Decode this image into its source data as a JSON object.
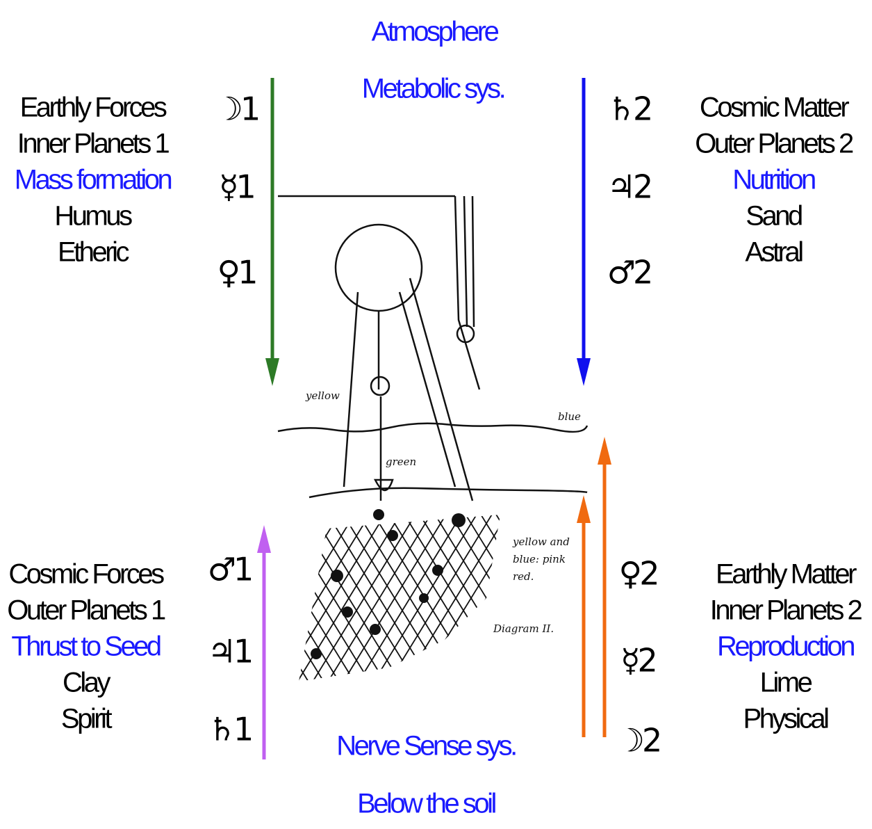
{
  "header": {
    "title": "Atmosphere",
    "subtitle": "Metabolic sys."
  },
  "quadrants": [
    {
      "lines": [
        "Earthly Forces",
        "Inner Planets 1",
        "Mass formation",
        "Humus",
        "Etheric"
      ],
      "symbols": [
        "☽1",
        "☿1",
        "♀1"
      ]
    },
    {
      "lines": [
        "Cosmic  Matter",
        "Outer Planets 2",
        "Nutrition",
        "Sand",
        "Astral"
      ],
      "symbols": [
        "♄2",
        "♃2",
        "♂2"
      ]
    },
    {
      "lines": [
        "Cosmic  Forces",
        "Outer Planets 1",
        "Thrust to Seed",
        "Clay",
        "Spirit"
      ],
      "symbols": [
        "♂1",
        "♃1",
        "♄1"
      ]
    },
    {
      "lines": [
        "Earthly Matter",
        "Inner Planets 2",
        "Reproduction",
        "Lime",
        "Physical"
      ],
      "symbols": [
        "♀2",
        "☿2",
        "☽2"
      ]
    }
  ],
  "footer": {
    "title": "Nerve Sense sys.",
    "subtitle": "Below the soil"
  },
  "sketch": {
    "labels": [
      "yellow",
      "blue",
      "green",
      "yellow and",
      "blue: pink",
      "red.",
      "Diagram II."
    ]
  }
}
